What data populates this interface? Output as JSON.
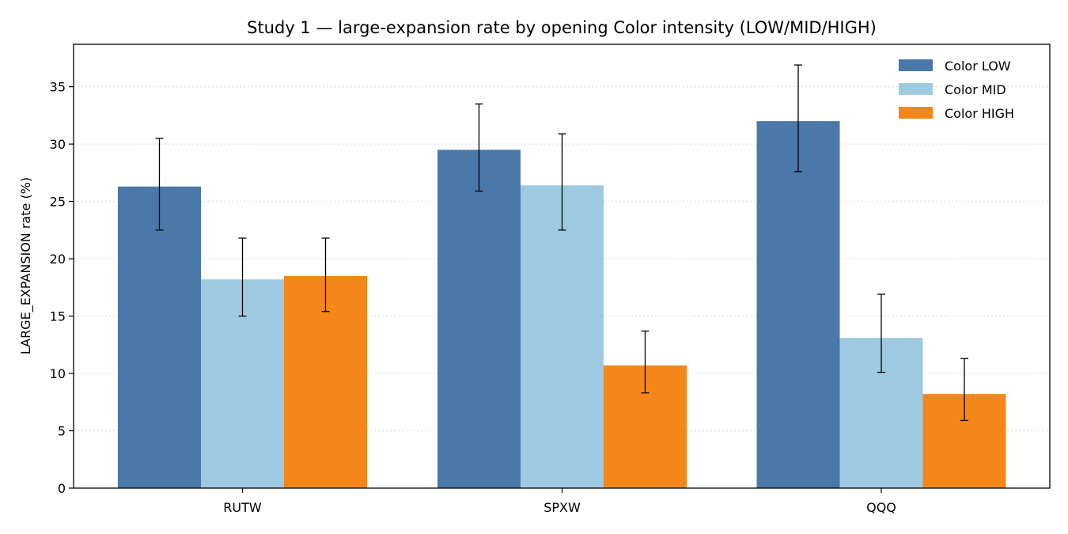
{
  "chart_data": {
    "type": "bar",
    "title": "Study 1 — large-expansion rate by opening Color intensity (LOW/MID/HIGH)",
    "xlabel": "",
    "ylabel": "LARGE_EXPANSION rate (%)",
    "ylim": [
      0,
      38.7
    ],
    "yticks": [
      0,
      5,
      10,
      15,
      20,
      25,
      30,
      35
    ],
    "grid": "y-dotted",
    "legend_position": "top-right",
    "categories": [
      "RUTW",
      "SPXW",
      "QQQ"
    ],
    "series": [
      {
        "name": "Color LOW",
        "color": "#4a78a8",
        "values": [
          26.3,
          29.5,
          32.0
        ],
        "err_low": [
          22.5,
          25.9,
          27.6
        ],
        "err_high": [
          30.5,
          33.5,
          36.9
        ]
      },
      {
        "name": "Color MID",
        "color": "#9ecae1",
        "values": [
          18.2,
          26.4,
          13.1
        ],
        "err_low": [
          15.0,
          22.5,
          10.1
        ],
        "err_high": [
          21.8,
          30.9,
          16.9
        ]
      },
      {
        "name": "Color HIGH",
        "color": "#f5871a",
        "values": [
          18.5,
          10.7,
          8.2
        ],
        "err_low": [
          15.4,
          8.3,
          5.9
        ],
        "err_high": [
          21.8,
          13.7,
          11.3
        ]
      }
    ]
  }
}
